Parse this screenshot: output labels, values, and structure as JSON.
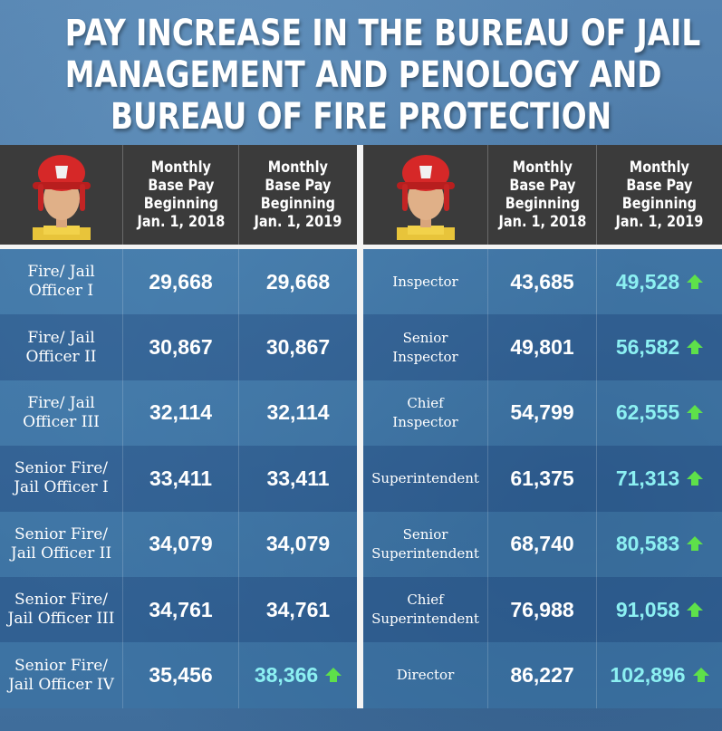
{
  "title": {
    "line1": "PAY INCREASE IN THE BUREAU OF JAIL",
    "line2": "MANAGEMENT AND PENOLOGY AND",
    "line3": "BUREAU OF FIRE PROTECTION"
  },
  "headers": {
    "col_2018": "Monthly\nBase Pay\nBeginning\nJan. 1, 2018",
    "col_2019": "Monthly\nBase Pay\nBeginning\nJan. 1, 2019"
  },
  "colors": {
    "increase": "#8cf0f2",
    "arrow": "#5ee04a",
    "header_bg": "#3b3b3b"
  },
  "left_table": [
    {
      "rank": "Fire/ Jail\nOfficer I",
      "pay_2018": "29,668",
      "pay_2019": "29,668",
      "increased": false
    },
    {
      "rank": "Fire/ Jail\nOfficer II",
      "pay_2018": "30,867",
      "pay_2019": "30,867",
      "increased": false
    },
    {
      "rank": "Fire/ Jail\nOfficer III",
      "pay_2018": "32,114",
      "pay_2019": "32,114",
      "increased": false
    },
    {
      "rank": "Senior Fire/\nJail Officer I",
      "pay_2018": "33,411",
      "pay_2019": "33,411",
      "increased": false
    },
    {
      "rank": "Senior Fire/\nJail Officer II",
      "pay_2018": "34,079",
      "pay_2019": "34,079",
      "increased": false
    },
    {
      "rank": "Senior Fire/\nJail Officer III",
      "pay_2018": "34,761",
      "pay_2019": "34,761",
      "increased": false
    },
    {
      "rank": "Senior Fire/\nJail Officer IV",
      "pay_2018": "35,456",
      "pay_2019": "38,366",
      "increased": true
    }
  ],
  "right_table": [
    {
      "rank": "Inspector",
      "pay_2018": "43,685",
      "pay_2019": "49,528",
      "increased": true
    },
    {
      "rank": "Senior\nInspector",
      "pay_2018": "49,801",
      "pay_2019": "56,582",
      "increased": true
    },
    {
      "rank": "Chief\nInspector",
      "pay_2018": "54,799",
      "pay_2019": "62,555",
      "increased": true
    },
    {
      "rank": "Superintendent",
      "pay_2018": "61,375",
      "pay_2019": "71,313",
      "increased": true
    },
    {
      "rank": "Senior\nSuperintendent",
      "pay_2018": "68,740",
      "pay_2019": "80,583",
      "increased": true
    },
    {
      "rank": "Chief\nSuperintendent",
      "pay_2018": "76,988",
      "pay_2019": "91,058",
      "increased": true
    },
    {
      "rank": "Director",
      "pay_2018": "86,227",
      "pay_2019": "102,896",
      "increased": true
    }
  ]
}
